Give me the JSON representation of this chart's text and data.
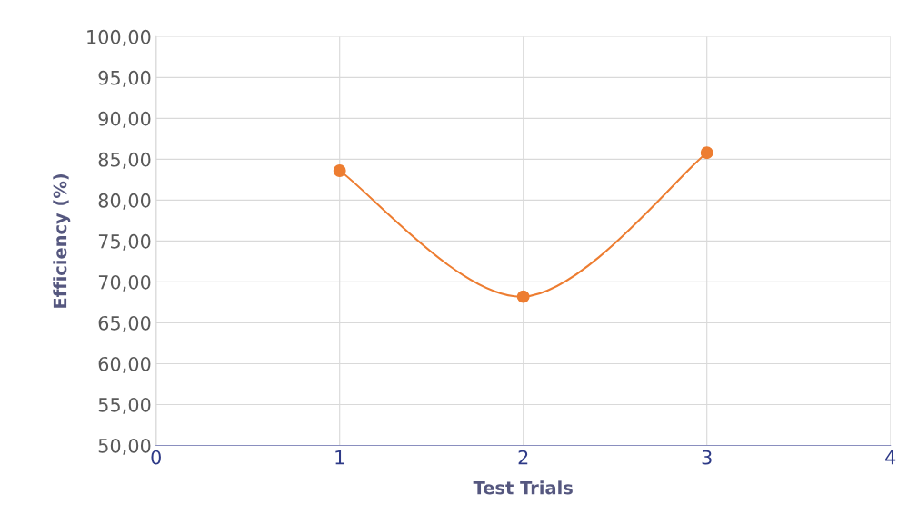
{
  "chart_data": {
    "type": "line",
    "xlabel": "Test Trials",
    "ylabel": "Efficiency (%)",
    "x": [
      1,
      2,
      3
    ],
    "series": [
      {
        "color": "#ed7d31",
        "values": [
          83.6,
          68.2,
          85.8
        ]
      }
    ],
    "xlim": [
      0,
      4
    ],
    "xticks": [
      0,
      1,
      2,
      3,
      4
    ],
    "ylim": [
      50,
      100
    ],
    "yticks": [
      {
        "value": 50,
        "label": "50,00"
      },
      {
        "value": 55,
        "label": "55,00"
      },
      {
        "value": 60,
        "label": "60,00"
      },
      {
        "value": 65,
        "label": "65,00"
      },
      {
        "value": 70,
        "label": "70,00"
      },
      {
        "value": 75,
        "label": "75,00"
      },
      {
        "value": 80,
        "label": "80,00"
      },
      {
        "value": 85,
        "label": "85,00"
      },
      {
        "value": 90,
        "label": "90,00"
      },
      {
        "value": 95,
        "label": "95,00"
      },
      {
        "value": 100,
        "label": "100,00"
      }
    ],
    "grid": true,
    "marker": "circle",
    "line_style": "solid",
    "legend": false
  }
}
